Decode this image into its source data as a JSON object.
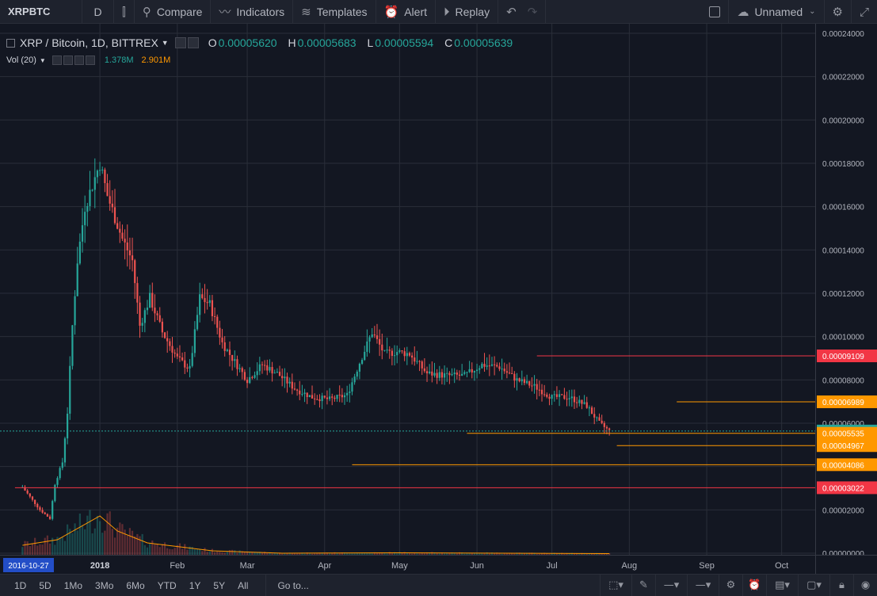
{
  "toolbar": {
    "symbol": "XRPBTC",
    "interval": "D",
    "compare": "Compare",
    "indicators": "Indicators",
    "templates": "Templates",
    "alert": "Alert",
    "replay": "Replay",
    "layout_name": "Unnamed"
  },
  "legend": {
    "title": "XRP / Bitcoin, 1D, BITTREX",
    "open_key": "O",
    "open": "0.00005620",
    "high_key": "H",
    "high": "0.00005683",
    "low_key": "L",
    "low": "0.00005594",
    "close_key": "C",
    "close": "0.00005639"
  },
  "volume_legend": {
    "label": "Vol (20)",
    "volume": "1.378M",
    "ma": "2.901M"
  },
  "bottombar": {
    "ranges": [
      "1D",
      "5D",
      "1Mo",
      "3Mo",
      "6Mo",
      "YTD",
      "1Y",
      "5Y",
      "All"
    ],
    "goto": "Go to..."
  },
  "chart_data": {
    "type": "candlestick",
    "symbol": "XRP / Bitcoin",
    "interval": "1D",
    "exchange": "BITTREX",
    "y_range": [
      0,
      0.00024
    ],
    "y_ticks": [
      "0.00000000",
      "0.00002000",
      "0.00004000",
      "0.00006000",
      "0.00008000",
      "0.00010000",
      "0.00012000",
      "0.00014000",
      "0.00016000",
      "0.00018000",
      "0.00020000",
      "0.00022000",
      "0.00024000"
    ],
    "x_ticks": [
      "2016-10-27",
      "2018",
      "Feb",
      "Mar",
      "Apr",
      "May",
      "Jun",
      "Jul",
      "Aug",
      "Sep",
      "Oct"
    ],
    "grid": true,
    "colors": {
      "up": "#26a69a",
      "down": "#ef5350",
      "background": "#131722",
      "grid": "#2a2e39",
      "volume_ma": "#ff9800"
    },
    "close_path": [
      [
        "2017-12-01",
        3.05e-05
      ],
      [
        "2017-12-08",
        2e-05
      ],
      [
        "2017-12-12",
        1.6e-05
      ],
      [
        "2017-12-14",
        3.2e-05
      ],
      [
        "2017-12-17",
        4.2e-05
      ],
      [
        "2017-12-19",
        6.5e-05
      ],
      [
        "2017-12-21",
        0.000105
      ],
      [
        "2017-12-23",
        0.000135
      ],
      [
        "2017-12-26",
        0.00016
      ],
      [
        "2017-12-29",
        0.00017
      ],
      [
        "2018-01-01",
        0.00018
      ],
      [
        "2018-01-04",
        0.000165
      ],
      [
        "2018-01-07",
        0.000155
      ],
      [
        "2018-01-10",
        0.000145
      ],
      [
        "2018-01-14",
        0.000135
      ],
      [
        "2018-01-17",
        0.000105
      ],
      [
        "2018-01-21",
        0.000118
      ],
      [
        "2018-01-26",
        0.000102
      ],
      [
        "2018-02-01",
        9e-05
      ],
      [
        "2018-02-06",
        8.5e-05
      ],
      [
        "2018-02-10",
        0.000118
      ],
      [
        "2018-02-14",
        0.000115
      ],
      [
        "2018-02-19",
        9.7e-05
      ],
      [
        "2018-02-23",
        9e-05
      ],
      [
        "2018-03-01",
        8e-05
      ],
      [
        "2018-03-07",
        8.7e-05
      ],
      [
        "2018-03-13",
        8.3e-05
      ],
      [
        "2018-03-20",
        7.6e-05
      ],
      [
        "2018-03-27",
        7.2e-05
      ],
      [
        "2018-04-03",
        7.1e-05
      ],
      [
        "2018-04-10",
        7.3e-05
      ],
      [
        "2018-04-15",
        8.8e-05
      ],
      [
        "2018-04-20",
        0.000102
      ],
      [
        "2018-04-25",
        9.2e-05
      ],
      [
        "2018-04-30",
        9.3e-05
      ],
      [
        "2018-05-05",
        9.2e-05
      ],
      [
        "2018-05-12",
        8.3e-05
      ],
      [
        "2018-05-20",
        8.2e-05
      ],
      [
        "2018-05-27",
        8.2e-05
      ],
      [
        "2018-06-03",
        8.7e-05
      ],
      [
        "2018-06-10",
        8.6e-05
      ],
      [
        "2018-06-17",
        8e-05
      ],
      [
        "2018-06-24",
        7.7e-05
      ],
      [
        "2018-07-01",
        7.2e-05
      ],
      [
        "2018-07-08",
        7.2e-05
      ],
      [
        "2018-07-15",
        6.8e-05
      ],
      [
        "2018-07-20",
        6e-05
      ],
      [
        "2018-07-24",
        5.64e-05
      ]
    ],
    "volume_ma_path": [
      [
        "2017-12-01",
        0.24
      ],
      [
        "2017-12-15",
        0.38
      ],
      [
        "2018-01-01",
        0.98
      ],
      [
        "2018-01-08",
        0.6
      ],
      [
        "2018-01-20",
        0.3
      ],
      [
        "2018-02-15",
        0.1
      ],
      [
        "2018-03-15",
        0.04
      ],
      [
        "2018-05-01",
        0.05
      ],
      [
        "2018-07-24",
        0.03
      ]
    ],
    "horizontal_levels": [
      {
        "price": "0.00009109",
        "color": "#f23645",
        "from": "2018-06-25"
      },
      {
        "price": "0.00006989",
        "color": "#ff9800",
        "from": "2018-08-20"
      },
      {
        "price": "0.00005639",
        "color": "#26a69a",
        "dotted": true
      },
      {
        "price": "0.00005535",
        "color": "#ff9800",
        "from": "2018-05-28"
      },
      {
        "price": "0.00004967",
        "color": "#ff9800",
        "from": "2018-07-27"
      },
      {
        "price": "0.00004086",
        "color": "#ff9800",
        "from": "2018-04-12"
      },
      {
        "price": "0.00003022",
        "color": "#f23645",
        "from": "2017-11-28"
      }
    ]
  }
}
